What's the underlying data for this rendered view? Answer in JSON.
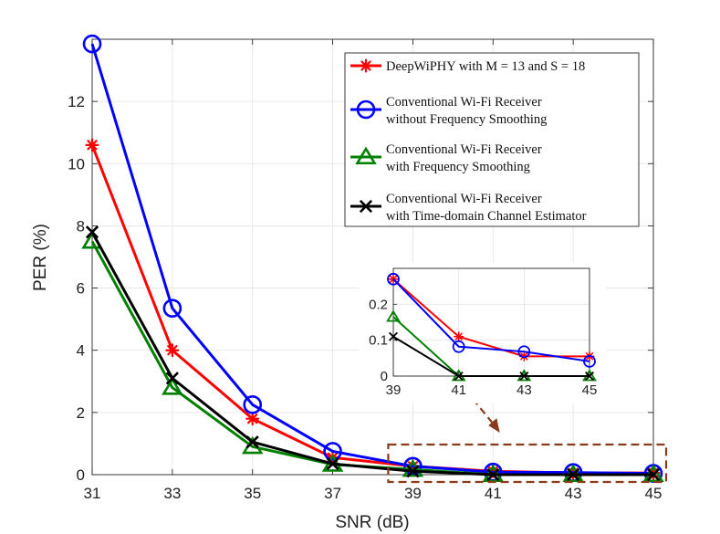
{
  "chart_data": {
    "type": "line",
    "xlabel": "SNR (dB)",
    "ylabel": "PER (%)",
    "x": [
      31,
      33,
      35,
      37,
      39,
      41,
      43,
      45
    ],
    "xlim": [
      31,
      45
    ],
    "ylim": [
      0,
      14
    ],
    "xticks": [
      "31",
      "33",
      "35",
      "37",
      "39",
      "41",
      "43",
      "45"
    ],
    "yticks": [
      "0",
      "2",
      "4",
      "6",
      "8",
      "10",
      "12"
    ],
    "legend_location": "top-right",
    "series": [
      {
        "name": "DeepWiPHY with M = 13 and S = 18",
        "legend_lines": [
          "DeepWiPHY with M = 13 and S = 18"
        ],
        "color": "#ff0000",
        "marker": "asterisk",
        "values": [
          10.6,
          4.0,
          1.8,
          0.55,
          0.27,
          0.11,
          0.055,
          0.055
        ]
      },
      {
        "name": "Conventional Wi-Fi Receiver without Frequency Smoothing",
        "legend_lines": [
          "Conventional Wi-Fi Receiver",
          "without Frequency Smoothing"
        ],
        "color": "#0000ff",
        "marker": "circle",
        "values": [
          13.85,
          5.35,
          2.25,
          0.75,
          0.27,
          0.082,
          0.068,
          0.041
        ]
      },
      {
        "name": "Conventional Wi-Fi Receiver with Frequency Smoothing",
        "legend_lines": [
          "Conventional Wi-Fi Receiver",
          "with Frequency Smoothing"
        ],
        "color": "#008000",
        "marker": "triangle",
        "values": [
          7.5,
          2.8,
          0.9,
          0.33,
          0.165,
          0.0,
          0.0,
          0.0
        ]
      },
      {
        "name": "Conventional Wi-Fi Receiver with Time-domain Channel Estimator",
        "legend_lines": [
          "Conventional Wi-Fi Receiver",
          "with Time-domain Channel Estimator"
        ],
        "color": "#000000",
        "marker": "cross",
        "values": [
          7.8,
          3.1,
          1.05,
          0.35,
          0.11,
          0.0,
          0.0,
          0.0
        ]
      }
    ],
    "inset": {
      "x": [
        39,
        41,
        43,
        45
      ],
      "xlim": [
        39,
        45
      ],
      "ylim": [
        0,
        0.3
      ],
      "xticks": [
        "39",
        "41",
        "43",
        "45"
      ],
      "yticks": [
        "0",
        "0.1",
        "0.2"
      ],
      "zoom_range": "SNR 39 to 45 dB"
    }
  }
}
